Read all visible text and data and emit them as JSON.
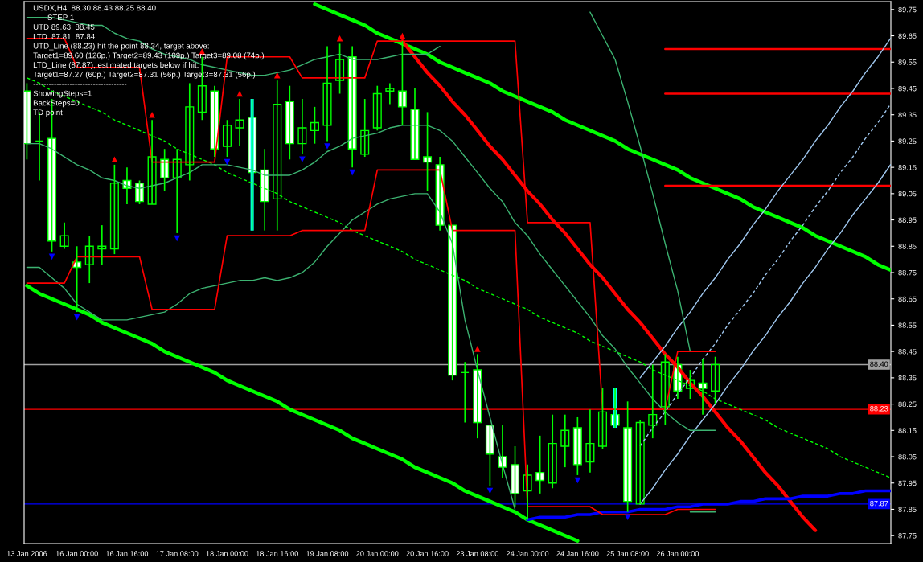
{
  "chart_data": {
    "type": "candlestick",
    "title": "USDX,H4  88.30 88.43 88.25 88.40",
    "annotations": [
      "---   STEP 1   -------------------",
      "UTD 89.63  88.45",
      "LTD  87.81  87.84",
      "UTD_Line (88.23) hit the point 88.34, target above:",
      "Target1=89.60 (126p.) Target2=89.43 (109p.) Target3=89.08 (74p.)",
      "LTD_Line (87.87), estimated targets below if hit:",
      "Target1=87.27 (60p.) Target2=87.31 (56p.) Target3=87.31 (56p.)",
      "------------------------------------",
      "ShowingSteps=1",
      "BackSteps=0",
      "TD point"
    ],
    "categories": [
      "13 Jan 2006",
      null,
      null,
      null,
      "16 Jan 00:00",
      null,
      null,
      null,
      "16 Jan 16:00",
      null,
      null,
      null,
      "17 Jan 08:00",
      null,
      null,
      null,
      "18 Jan 00:00",
      null,
      null,
      null,
      "18 Jan 16:00",
      null,
      null,
      null,
      "19 Jan 08:00",
      null,
      null,
      null,
      "20 Jan 00:00",
      null,
      null,
      null,
      "20 Jan 16:00",
      null,
      null,
      null,
      "23 Jan 08:00",
      null,
      null,
      null,
      "24 Jan 00:00",
      null,
      null,
      null,
      "24 Jan 16:00",
      null,
      null,
      null,
      "25 Jan 08:00",
      null,
      null,
      null,
      "26 Jan 00:00",
      null,
      null,
      null,
      null,
      null,
      null,
      null,
      null,
      null,
      null,
      null,
      null,
      null,
      null,
      null,
      null,
      null
    ],
    "ohlc": [
      [
        89.44,
        89.47,
        89.18,
        89.24
      ],
      [
        89.25,
        89.36,
        89.1,
        89.25
      ],
      [
        89.26,
        89.41,
        88.83,
        88.87
      ],
      [
        88.85,
        88.94,
        88.84,
        88.89
      ],
      [
        88.79,
        88.85,
        88.6,
        88.77
      ],
      [
        88.78,
        88.89,
        88.71,
        88.85
      ],
      [
        88.84,
        88.93,
        88.78,
        88.85
      ],
      [
        88.84,
        89.16,
        88.82,
        89.09
      ],
      [
        89.1,
        89.15,
        89.01,
        89.07
      ],
      [
        89.09,
        89.1,
        89.01,
        89.02
      ],
      [
        89.01,
        89.33,
        89.01,
        89.19
      ],
      [
        89.18,
        89.22,
        89.06,
        89.11
      ],
      [
        89.11,
        89.22,
        88.9,
        89.18
      ],
      [
        89.16,
        89.47,
        89.1,
        89.38
      ],
      [
        89.36,
        89.57,
        89.33,
        89.46
      ],
      [
        89.44,
        89.46,
        89.19,
        89.22
      ],
      [
        89.23,
        89.33,
        89.19,
        89.31
      ],
      [
        89.3,
        89.41,
        89.23,
        89.33
      ],
      [
        89.34,
        89.41,
        88.91,
        89.13
      ],
      [
        89.14,
        89.22,
        88.91,
        89.02
      ],
      [
        89.03,
        89.48,
        88.91,
        89.39
      ],
      [
        89.4,
        89.46,
        89.18,
        89.24
      ],
      [
        89.24,
        89.41,
        89.2,
        89.3
      ],
      [
        89.29,
        89.38,
        89.24,
        89.32
      ],
      [
        89.31,
        89.61,
        89.25,
        89.47
      ],
      [
        89.48,
        89.62,
        89.43,
        89.56
      ],
      [
        89.57,
        89.61,
        89.15,
        89.22
      ],
      [
        89.2,
        89.41,
        89.19,
        89.29
      ],
      [
        89.3,
        89.46,
        89.29,
        89.43
      ],
      [
        89.44,
        89.47,
        89.39,
        89.45
      ],
      [
        89.44,
        89.63,
        89.31,
        89.38
      ],
      [
        89.37,
        89.45,
        89.18,
        89.18
      ],
      [
        89.19,
        89.36,
        89.06,
        89.17
      ],
      [
        89.16,
        89.19,
        88.91,
        88.93
      ],
      [
        88.93,
        88.93,
        88.34,
        88.36
      ],
      [
        88.37,
        88.41,
        88.18,
        88.37
      ],
      [
        88.38,
        88.44,
        88.12,
        88.18
      ],
      [
        88.17,
        88.17,
        87.94,
        88.06
      ],
      [
        88.05,
        88.17,
        87.97,
        88.01
      ],
      [
        88.02,
        88.09,
        87.86,
        87.91
      ],
      [
        87.92,
        88.02,
        87.81,
        87.98
      ],
      [
        87.99,
        88.13,
        87.91,
        87.96
      ],
      [
        87.95,
        88.21,
        87.93,
        88.1
      ],
      [
        88.09,
        88.21,
        88.01,
        88.15
      ],
      [
        88.16,
        88.2,
        87.98,
        88.02
      ],
      [
        88.03,
        88.23,
        87.99,
        88.1
      ],
      [
        88.09,
        88.31,
        88.08,
        88.22
      ],
      [
        88.21,
        88.31,
        88.16,
        88.17
      ],
      [
        88.16,
        88.26,
        87.84,
        87.88
      ],
      [
        87.87,
        88.19,
        87.87,
        88.18
      ],
      [
        88.17,
        88.4,
        88.12,
        88.21
      ],
      [
        88.24,
        88.44,
        88.17,
        88.41
      ],
      [
        88.4,
        88.43,
        88.27,
        88.3
      ],
      [
        88.31,
        88.38,
        88.27,
        88.34
      ],
      [
        88.33,
        88.42,
        88.21,
        88.31
      ],
      [
        88.3,
        88.43,
        88.25,
        88.4
      ],
      null,
      null,
      null,
      null,
      null,
      null,
      null,
      null,
      null,
      null,
      null,
      null,
      null,
      null
    ],
    "color": "#00ff00",
    "colors": [
      "#ffffff",
      "#00ff00",
      "#ffffff",
      "#000000",
      "#ffffff",
      "#000000",
      "#000000",
      "#000000",
      "#ffffff",
      "#ffffff",
      "#000000",
      "#ffffff",
      "#000000",
      "#000000",
      "#000000",
      "#ffffff",
      "#000000",
      "#000000",
      "#ffffff",
      "#ffffff",
      "#000000",
      "#ffffff",
      "#000000",
      "#000000",
      "#000000",
      "#000000",
      "#ffffff",
      "#000000",
      "#000000",
      "#000000",
      "#ffffff",
      "#ffffff",
      "#ffffff",
      "#ffffff",
      "#ffffff",
      "#00ff00",
      "#ffffff",
      "#ffffff",
      "#ffffff",
      "#ffffff",
      "#000000",
      "#ffffff",
      "#000000",
      "#000000",
      "#ffffff",
      "#000000",
      "#000000",
      "#ffffff",
      "#ffffff",
      "#000000",
      "#000000",
      "#000000",
      "#ffffff",
      "#000000",
      "#ffffff",
      "#000000",
      null,
      null,
      null,
      null,
      null,
      null,
      null,
      null,
      null,
      null,
      null,
      null,
      null,
      null
    ],
    "series": [
      {
        "type": "line",
        "color": "#00ff00",
        "line_style": "solid",
        "values": [
          null,
          null,
          null,
          null,
          null,
          null,
          null,
          null,
          null,
          null,
          null,
          null,
          null,
          null,
          null,
          null,
          null,
          null,
          null,
          null,
          null,
          null,
          null,
          89.77,
          89.75,
          89.73,
          89.71,
          89.69,
          89.66,
          89.64,
          89.62,
          89.6,
          89.58,
          89.55,
          89.53,
          89.51,
          89.49,
          89.47,
          89.44,
          89.42,
          89.4,
          89.38,
          89.36,
          89.33,
          89.31,
          89.29,
          89.27,
          89.25,
          89.22,
          89.2,
          89.18,
          89.16,
          89.14,
          89.11,
          89.09,
          89.07,
          89.05,
          89.03,
          89.0,
          88.98,
          88.96,
          88.94,
          88.92,
          88.89,
          88.87,
          88.85,
          88.83,
          88.81,
          88.78,
          88.76
        ]
      },
      {
        "type": "line",
        "color": "#00ff00",
        "line_style": "solid",
        "values": [
          88.7,
          88.67,
          88.65,
          88.63,
          88.61,
          88.59,
          88.56,
          88.54,
          88.52,
          88.5,
          88.48,
          88.45,
          88.43,
          88.41,
          88.39,
          88.37,
          88.34,
          88.32,
          88.3,
          88.28,
          88.26,
          88.23,
          88.21,
          88.19,
          88.17,
          88.15,
          88.12,
          88.1,
          88.08,
          88.06,
          88.04,
          88.01,
          87.99,
          87.97,
          87.95,
          87.92,
          87.9,
          87.88,
          87.86,
          87.84,
          87.81,
          87.79,
          87.77,
          87.75,
          87.73,
          null,
          null,
          null,
          null,
          null,
          null,
          null,
          null,
          null,
          null,
          null,
          null,
          null,
          null,
          null,
          null,
          null,
          null,
          null,
          null,
          null,
          null,
          null,
          null,
          null
        ]
      },
      {
        "type": "line",
        "color": "#00ff00",
        "line_style": "dashed",
        "values": [
          89.49,
          89.47,
          89.44,
          89.42,
          89.4,
          89.38,
          89.36,
          89.33,
          89.31,
          89.29,
          89.27,
          89.25,
          89.22,
          89.2,
          89.18,
          89.16,
          89.13,
          89.11,
          89.09,
          89.07,
          89.05,
          89.02,
          89.0,
          88.98,
          88.96,
          88.94,
          88.91,
          88.89,
          88.87,
          88.85,
          88.83,
          88.8,
          88.78,
          88.76,
          88.74,
          88.72,
          88.69,
          88.67,
          88.65,
          88.63,
          88.61,
          88.58,
          88.56,
          88.54,
          88.52,
          88.49,
          88.47,
          88.45,
          88.43,
          88.41,
          88.38,
          88.36,
          88.34,
          88.32,
          88.3,
          88.27,
          88.25,
          88.23,
          88.21,
          88.19,
          88.16,
          88.14,
          88.12,
          88.1,
          88.08,
          88.05,
          88.03,
          88.01,
          87.99,
          87.97
        ]
      },
      {
        "type": "line",
        "color": "#ff0000",
        "line_style": "solid",
        "values": [
          null,
          null,
          null,
          null,
          null,
          null,
          null,
          null,
          null,
          null,
          null,
          null,
          null,
          null,
          null,
          null,
          null,
          null,
          null,
          null,
          null,
          null,
          null,
          null,
          null,
          null,
          null,
          null,
          null,
          null,
          89.63,
          89.57,
          89.51,
          89.46,
          89.4,
          89.35,
          89.29,
          89.23,
          89.18,
          89.12,
          89.06,
          89.01,
          88.95,
          88.9,
          88.84,
          88.78,
          88.73,
          88.67,
          88.61,
          88.56,
          88.5,
          88.44,
          88.39,
          88.33,
          88.28,
          88.22,
          88.16,
          88.11,
          88.05,
          87.99,
          87.94,
          87.88,
          87.82,
          87.77,
          null,
          null,
          null,
          null,
          null,
          null
        ]
      },
      {
        "type": "line",
        "color": "#0000ff",
        "line_style": "solid",
        "values": [
          null,
          null,
          null,
          null,
          null,
          null,
          null,
          null,
          null,
          null,
          null,
          null,
          null,
          null,
          null,
          null,
          null,
          null,
          null,
          null,
          null,
          null,
          null,
          null,
          null,
          null,
          null,
          null,
          null,
          null,
          null,
          null,
          null,
          null,
          null,
          null,
          null,
          null,
          null,
          null,
          87.81,
          87.82,
          87.82,
          87.82,
          87.83,
          87.83,
          87.84,
          87.84,
          87.84,
          87.85,
          87.85,
          87.85,
          87.86,
          87.86,
          87.87,
          87.87,
          87.87,
          87.88,
          87.88,
          87.89,
          87.89,
          87.89,
          87.9,
          87.9,
          87.9,
          87.91,
          87.91,
          87.92,
          87.92,
          87.92
        ]
      },
      {
        "type": "line",
        "color": "#ff0000",
        "line_style": "solid",
        "values": [
          null,
          null,
          null,
          null,
          null,
          null,
          null,
          null,
          null,
          null,
          null,
          null,
          null,
          null,
          null,
          null,
          null,
          null,
          null,
          null,
          null,
          null,
          null,
          null,
          null,
          null,
          null,
          null,
          null,
          null,
          null,
          null,
          null,
          null,
          null,
          null,
          null,
          null,
          null,
          null,
          null,
          null,
          null,
          null,
          null,
          null,
          null,
          null,
          null,
          null,
          null,
          89.6,
          89.6,
          89.6,
          89.6,
          89.6,
          89.6,
          89.6,
          89.6,
          89.6,
          89.6,
          89.6,
          89.6,
          89.6,
          89.6,
          89.6,
          89.6,
          89.6,
          89.6,
          89.6
        ]
      },
      {
        "type": "line",
        "color": "#ff0000",
        "line_style": "solid",
        "values": [
          null,
          null,
          null,
          null,
          null,
          null,
          null,
          null,
          null,
          null,
          null,
          null,
          null,
          null,
          null,
          null,
          null,
          null,
          null,
          null,
          null,
          null,
          null,
          null,
          null,
          null,
          null,
          null,
          null,
          null,
          null,
          null,
          null,
          null,
          null,
          null,
          null,
          null,
          null,
          null,
          null,
          null,
          null,
          null,
          null,
          null,
          null,
          null,
          null,
          null,
          null,
          89.43,
          89.43,
          89.43,
          89.43,
          89.43,
          89.43,
          89.43,
          89.43,
          89.43,
          89.43,
          89.43,
          89.43,
          89.43,
          89.43,
          89.43,
          89.43,
          89.43,
          89.43,
          89.43
        ]
      },
      {
        "type": "line",
        "color": "#ff0000",
        "line_style": "solid",
        "values": [
          null,
          null,
          null,
          null,
          null,
          null,
          null,
          null,
          null,
          null,
          null,
          null,
          null,
          null,
          null,
          null,
          null,
          null,
          null,
          null,
          null,
          null,
          null,
          null,
          null,
          null,
          null,
          null,
          null,
          null,
          null,
          null,
          null,
          null,
          null,
          null,
          null,
          null,
          null,
          null,
          null,
          null,
          null,
          null,
          null,
          null,
          null,
          null,
          null,
          null,
          null,
          89.08,
          89.08,
          89.08,
          89.08,
          89.08,
          89.08,
          89.08,
          89.08,
          89.08,
          89.08,
          89.08,
          89.08,
          89.08,
          89.08,
          89.08,
          89.08,
          89.08,
          89.08,
          89.08
        ]
      },
      {
        "type": "line",
        "color": "#a0c8f0",
        "line_style": "solid",
        "values": [
          null,
          null,
          null,
          null,
          null,
          null,
          null,
          null,
          null,
          null,
          null,
          null,
          null,
          null,
          null,
          null,
          null,
          null,
          null,
          null,
          null,
          null,
          null,
          null,
          null,
          null,
          null,
          null,
          null,
          null,
          null,
          null,
          null,
          null,
          null,
          null,
          null,
          null,
          null,
          null,
          null,
          null,
          null,
          null,
          null,
          null,
          null,
          null,
          null,
          88.35,
          88.41,
          88.47,
          88.54,
          88.6,
          88.67,
          88.73,
          88.8,
          88.86,
          88.93,
          88.99,
          89.06,
          89.12,
          89.18,
          89.25,
          89.31,
          89.38,
          89.44,
          89.51,
          89.57,
          89.64
        ]
      },
      {
        "type": "line",
        "color": "#a0c8f0",
        "line_style": "dashed",
        "values": [
          null,
          null,
          null,
          null,
          null,
          null,
          null,
          null,
          null,
          null,
          null,
          null,
          null,
          null,
          null,
          null,
          null,
          null,
          null,
          null,
          null,
          null,
          null,
          null,
          null,
          null,
          null,
          null,
          null,
          null,
          null,
          null,
          null,
          null,
          null,
          null,
          null,
          null,
          null,
          null,
          null,
          null,
          null,
          null,
          null,
          null,
          null,
          null,
          null,
          88.09,
          88.16,
          88.22,
          88.29,
          88.35,
          88.42,
          88.48,
          88.55,
          88.61,
          88.67,
          88.74,
          88.8,
          88.87,
          88.93,
          89.0,
          89.06,
          89.13,
          89.19,
          89.26,
          89.32,
          89.39
        ]
      },
      {
        "type": "line",
        "color": "#a0c8f0",
        "line_style": "solid",
        "values": [
          null,
          null,
          null,
          null,
          null,
          null,
          null,
          null,
          null,
          null,
          null,
          null,
          null,
          null,
          null,
          null,
          null,
          null,
          null,
          null,
          null,
          null,
          null,
          null,
          null,
          null,
          null,
          null,
          null,
          null,
          null,
          null,
          null,
          null,
          null,
          null,
          null,
          null,
          null,
          null,
          null,
          null,
          null,
          null,
          null,
          null,
          null,
          null,
          null,
          87.87,
          87.93,
          88.0,
          88.06,
          88.13,
          88.19,
          88.25,
          88.32,
          88.38,
          88.45,
          88.51,
          88.58,
          88.64,
          88.71,
          88.77,
          88.84,
          88.9,
          88.97,
          89.03,
          89.09,
          89.16
        ]
      },
      {
        "type": "line",
        "color": "#3cb371",
        "line_style": "solid",
        "values": [
          89.72,
          89.72,
          89.72,
          89.71,
          89.7,
          89.69,
          89.69,
          89.66,
          89.64,
          89.63,
          89.6,
          89.58,
          89.57,
          89.56,
          89.54,
          89.53,
          89.52,
          89.51,
          89.5,
          89.5,
          89.51,
          89.52,
          89.54,
          89.56,
          89.57,
          89.58,
          89.56,
          89.56,
          89.56,
          89.57,
          89.58,
          89.58,
          89.58,
          89.61,
          null,
          null,
          null,
          null,
          null,
          null,
          null,
          null,
          null,
          null,
          null,
          89.74,
          89.65,
          89.56,
          89.4,
          89.23,
          89.05,
          88.86,
          88.68,
          88.45,
          88.45,
          88.45,
          null,
          null,
          null,
          null,
          null,
          null,
          null,
          null,
          null,
          null,
          null,
          null,
          null,
          null
        ]
      },
      {
        "type": "line",
        "color": "#3cb371",
        "line_style": "solid",
        "values": [
          89.24,
          89.24,
          89.22,
          89.19,
          89.16,
          89.14,
          89.11,
          89.1,
          89.08,
          89.07,
          89.08,
          89.09,
          89.11,
          89.13,
          89.16,
          89.16,
          89.16,
          89.15,
          89.14,
          89.12,
          89.12,
          89.12,
          89.14,
          89.17,
          89.21,
          89.23,
          89.26,
          89.27,
          89.28,
          89.3,
          89.31,
          89.31,
          89.31,
          89.29,
          89.25,
          89.19,
          89.13,
          89.07,
          89.02,
          88.94,
          88.89,
          88.82,
          88.76,
          88.7,
          88.64,
          88.58,
          88.51,
          88.46,
          88.39,
          88.33,
          88.27,
          88.22,
          88.18,
          88.15,
          88.15,
          88.15,
          null,
          null,
          null,
          null,
          null,
          null,
          null,
          null,
          null,
          null,
          null,
          null,
          null,
          null
        ]
      },
      {
        "type": "line",
        "color": "#3cb371",
        "line_style": "solid",
        "values": [
          88.77,
          88.77,
          88.73,
          88.69,
          88.63,
          88.6,
          88.57,
          88.57,
          88.57,
          88.58,
          88.59,
          88.6,
          88.63,
          88.67,
          88.69,
          88.7,
          88.71,
          88.72,
          88.72,
          88.73,
          88.72,
          88.73,
          88.75,
          88.79,
          88.85,
          88.9,
          88.95,
          88.98,
          89.01,
          89.03,
          89.04,
          89.05,
          89.05,
          88.98,
          88.86,
          88.57,
          88.38,
          88.2,
          88.02,
          87.85,
          null,
          null,
          null,
          null,
          null,
          null,
          null,
          null,
          null,
          null,
          null,
          null,
          null,
          87.84,
          87.84,
          87.84,
          null,
          null,
          null,
          null,
          null,
          null,
          null,
          null,
          null,
          null,
          null,
          null,
          null,
          null
        ]
      },
      {
        "type": "line",
        "color": "#ff0000",
        "line_style": "solid",
        "values": [
          89.64,
          89.64,
          89.64,
          89.64,
          89.53,
          89.53,
          89.53,
          89.53,
          89.53,
          89.53,
          89.17,
          89.17,
          89.17,
          89.17,
          89.17,
          89.17,
          89.57,
          89.57,
          89.57,
          89.57,
          89.57,
          89.57,
          89.49,
          89.49,
          89.49,
          89.49,
          89.49,
          89.49,
          89.63,
          89.63,
          89.63,
          89.63,
          89.63,
          89.63,
          89.63,
          89.63,
          89.63,
          89.63,
          89.63,
          89.63,
          88.94,
          88.94,
          88.94,
          88.94,
          88.94,
          88.94,
          88.23,
          88.23,
          88.23,
          88.23,
          88.23,
          88.23,
          88.45,
          88.45,
          88.45,
          88.45,
          null,
          null,
          null,
          null,
          null,
          null,
          null,
          null,
          null,
          null,
          null,
          null,
          null,
          null
        ]
      },
      {
        "type": "line",
        "color": "#ff0000",
        "line_style": "solid",
        "values": [
          88.71,
          88.71,
          88.71,
          88.71,
          88.81,
          88.81,
          88.81,
          88.81,
          88.81,
          88.81,
          88.61,
          88.61,
          88.61,
          88.61,
          88.61,
          88.61,
          88.89,
          88.89,
          88.89,
          88.89,
          88.89,
          88.89,
          88.91,
          88.91,
          88.91,
          88.91,
          88.91,
          88.91,
          89.14,
          89.14,
          89.14,
          89.14,
          89.14,
          89.14,
          88.91,
          88.91,
          88.91,
          88.91,
          88.91,
          88.91,
          87.86,
          87.86,
          87.86,
          87.86,
          87.86,
          87.86,
          87.83,
          87.83,
          87.83,
          87.83,
          87.83,
          87.83,
          87.85,
          87.85,
          87.85,
          87.85,
          null,
          null,
          null,
          null,
          null,
          null,
          null,
          null,
          null,
          null,
          null,
          null,
          null,
          null
        ]
      },
      {
        "type": "bar",
        "color": "#00ffff",
        "base": [
          null,
          null,
          null,
          null,
          null,
          null,
          null,
          null,
          null,
          null,
          null,
          null,
          null,
          null,
          null,
          null,
          null,
          null,
          88.91,
          null,
          null,
          null,
          null,
          null,
          null,
          null,
          null,
          null,
          null,
          null,
          null,
          null,
          null,
          null,
          null,
          null,
          null,
          null,
          null,
          null,
          null,
          null,
          null,
          null,
          null,
          null,
          null,
          88.16,
          null,
          null,
          null,
          null,
          null,
          null,
          null,
          null,
          null,
          null,
          null,
          null,
          null,
          null,
          null,
          null,
          null,
          null,
          null,
          null,
          null,
          null
        ],
        "values": [
          null,
          null,
          null,
          null,
          null,
          null,
          null,
          null,
          null,
          null,
          null,
          null,
          null,
          null,
          null,
          null,
          null,
          null,
          0.5,
          null,
          null,
          null,
          null,
          null,
          null,
          null,
          null,
          null,
          null,
          null,
          null,
          null,
          null,
          null,
          null,
          null,
          null,
          null,
          null,
          null,
          null,
          null,
          null,
          null,
          null,
          null,
          null,
          0.15,
          null,
          null,
          null,
          null,
          null,
          null,
          null,
          null,
          null,
          null,
          null,
          null,
          null,
          null,
          null,
          null,
          null,
          null,
          null,
          null,
          null,
          null
        ]
      },
      {
        "type": "scatter",
        "color": "#ff0000",
        "marker": "triangle",
        "values": [
          null,
          null,
          null,
          null,
          null,
          null,
          null,
          89.18,
          null,
          null,
          89.35,
          null,
          null,
          null,
          89.59,
          null,
          null,
          89.43,
          null,
          null,
          89.5,
          null,
          null,
          null,
          null,
          89.64,
          null,
          null,
          null,
          null,
          89.65,
          null,
          null,
          null,
          null,
          null,
          88.46,
          null,
          null,
          null,
          null,
          null,
          null,
          null,
          null,
          null,
          null,
          null,
          null,
          null,
          null,
          null,
          null,
          null,
          null,
          null,
          null,
          null,
          null,
          null,
          null,
          null,
          null,
          null,
          null,
          null,
          null,
          null,
          null,
          null
        ]
      },
      {
        "type": "scatter",
        "color": "#0000ff",
        "marker": "triangle-down",
        "values": [
          null,
          null,
          88.81,
          null,
          88.58,
          null,
          null,
          null,
          null,
          null,
          null,
          null,
          88.88,
          null,
          null,
          null,
          89.17,
          null,
          null,
          null,
          null,
          null,
          89.18,
          null,
          89.23,
          null,
          89.13,
          null,
          null,
          null,
          null,
          null,
          null,
          null,
          null,
          null,
          null,
          87.92,
          null,
          null,
          null,
          null,
          null,
          null,
          87.96,
          null,
          null,
          null,
          87.82,
          null,
          null,
          null,
          null,
          null,
          null,
          null,
          null,
          null,
          null,
          null,
          null,
          null,
          null,
          null,
          null,
          null,
          null,
          null,
          null,
          null
        ]
      }
    ],
    "ref_lines": [
      {
        "axis": "y",
        "value": 88.4,
        "label": "88.40",
        "color": "#a0a0a0"
      },
      {
        "axis": "y",
        "value": 88.23,
        "label": "88.23",
        "color": "#ff0000"
      },
      {
        "axis": "y",
        "value": 87.87,
        "label": "87.87",
        "color": "#0000ff"
      }
    ],
    "ylim": [
      87.72,
      89.78
    ],
    "yticks": [
      87.75,
      87.85,
      87.95,
      88.05,
      88.15,
      88.25,
      88.35,
      88.45,
      88.55,
      88.65,
      88.75,
      88.85,
      88.95,
      89.05,
      89.15,
      89.25,
      89.35,
      89.45,
      89.55,
      89.65,
      89.75
    ]
  }
}
